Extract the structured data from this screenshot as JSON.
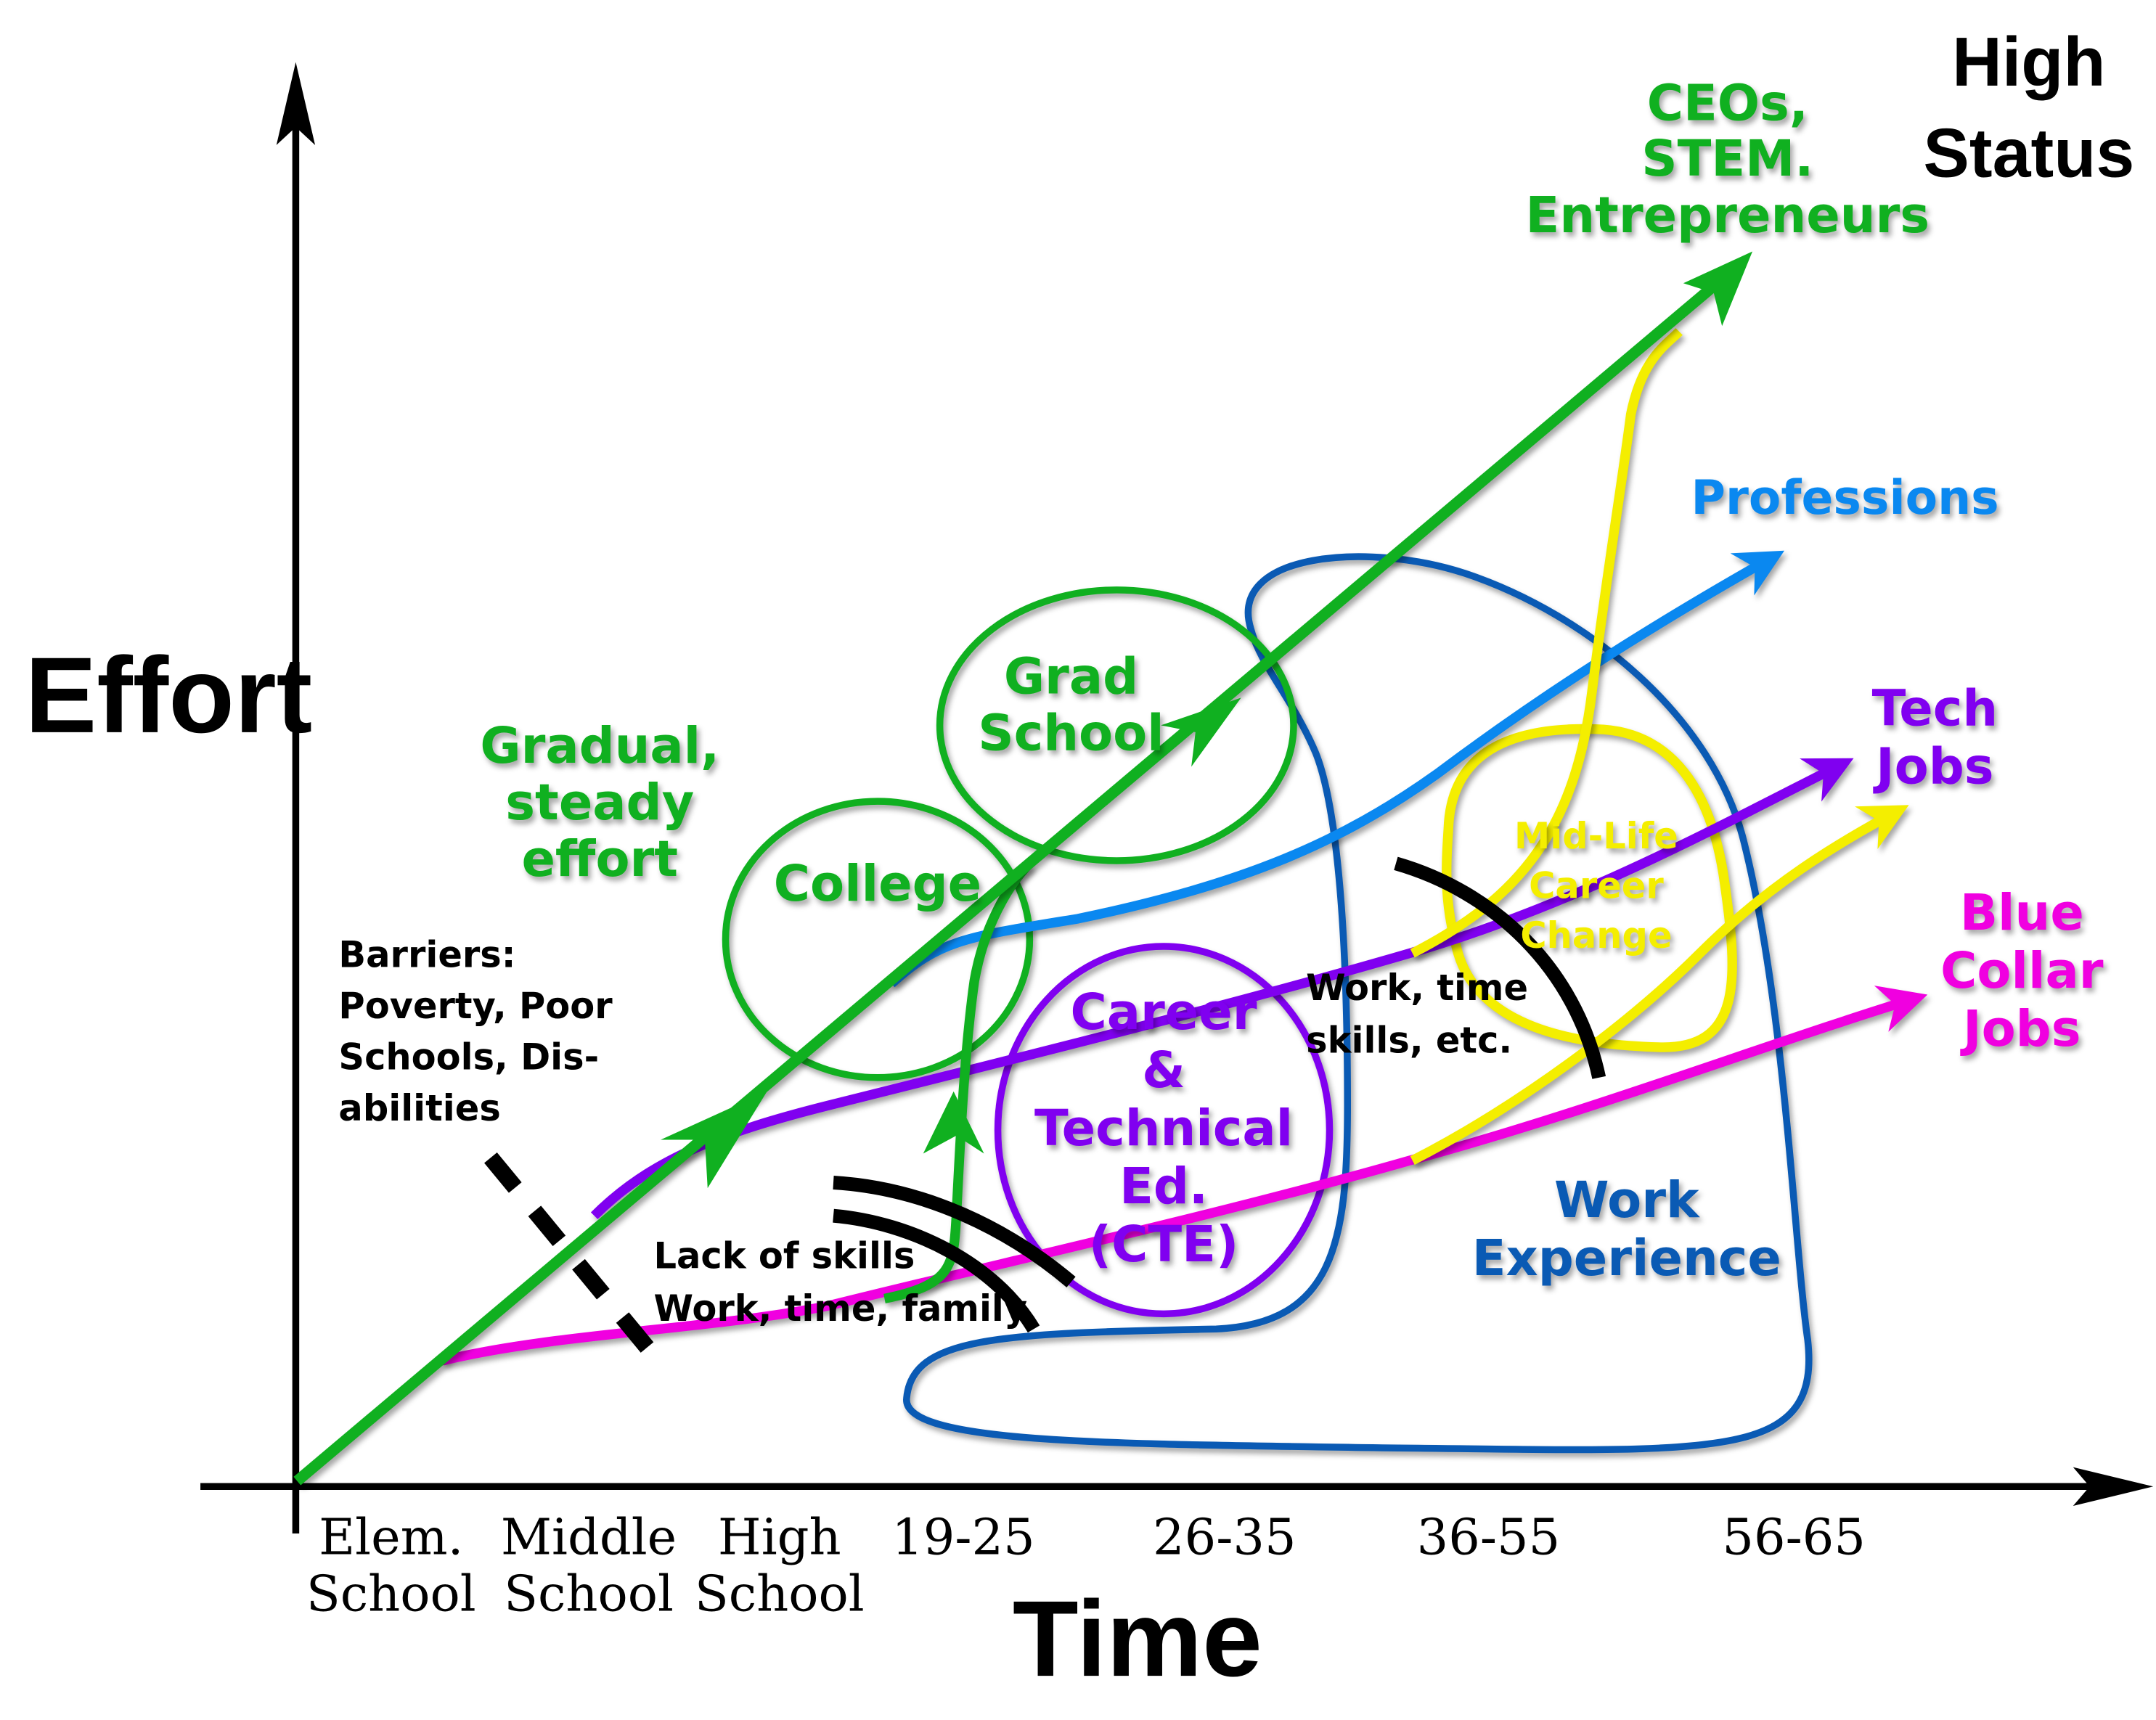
{
  "colors": {
    "green": "#10b020",
    "blue": "#0a88f0",
    "purple": "#8000f0",
    "magenta": "#f000e0",
    "yellow": "#f4ee00",
    "darkblue": "#0a5ab4",
    "black": "#000000"
  },
  "axes": {
    "y_label": "Effort",
    "x_label": "Time",
    "x_ticks": [
      [
        "Elem.",
        "School"
      ],
      [
        "Middle",
        "School"
      ],
      [
        "High",
        "School"
      ],
      [
        "19-25"
      ],
      [
        "26-35"
      ],
      [
        "36-55"
      ],
      [
        "56-65"
      ]
    ]
  },
  "corner": [
    "High",
    "Status"
  ],
  "outcomes": {
    "ceo": [
      "CEOs,",
      "STEM.",
      "Entrepreneurs"
    ],
    "professions": [
      "Professions"
    ],
    "tech": [
      "Tech",
      "Jobs"
    ],
    "blue_collar": [
      "Blue",
      "Collar",
      "Jobs"
    ]
  },
  "stages": {
    "college": "College",
    "grad": [
      "Grad",
      "School"
    ],
    "cte": [
      "Career",
      "&",
      "Technical",
      "Ed.",
      "(CTE)"
    ],
    "midlife": [
      "Mid-Life",
      "Career",
      "Change"
    ],
    "work": [
      "Work",
      "Experience"
    ]
  },
  "notes": {
    "gradual": [
      "Gradual,",
      "steady",
      "effort"
    ],
    "barriers": [
      "Barriers:",
      "Poverty, Poor",
      "Schools, Dis-",
      "abilities"
    ],
    "lack": [
      "Lack of skills",
      "Work, time, family"
    ],
    "worktime": [
      "Work, time",
      "skills, etc."
    ]
  }
}
